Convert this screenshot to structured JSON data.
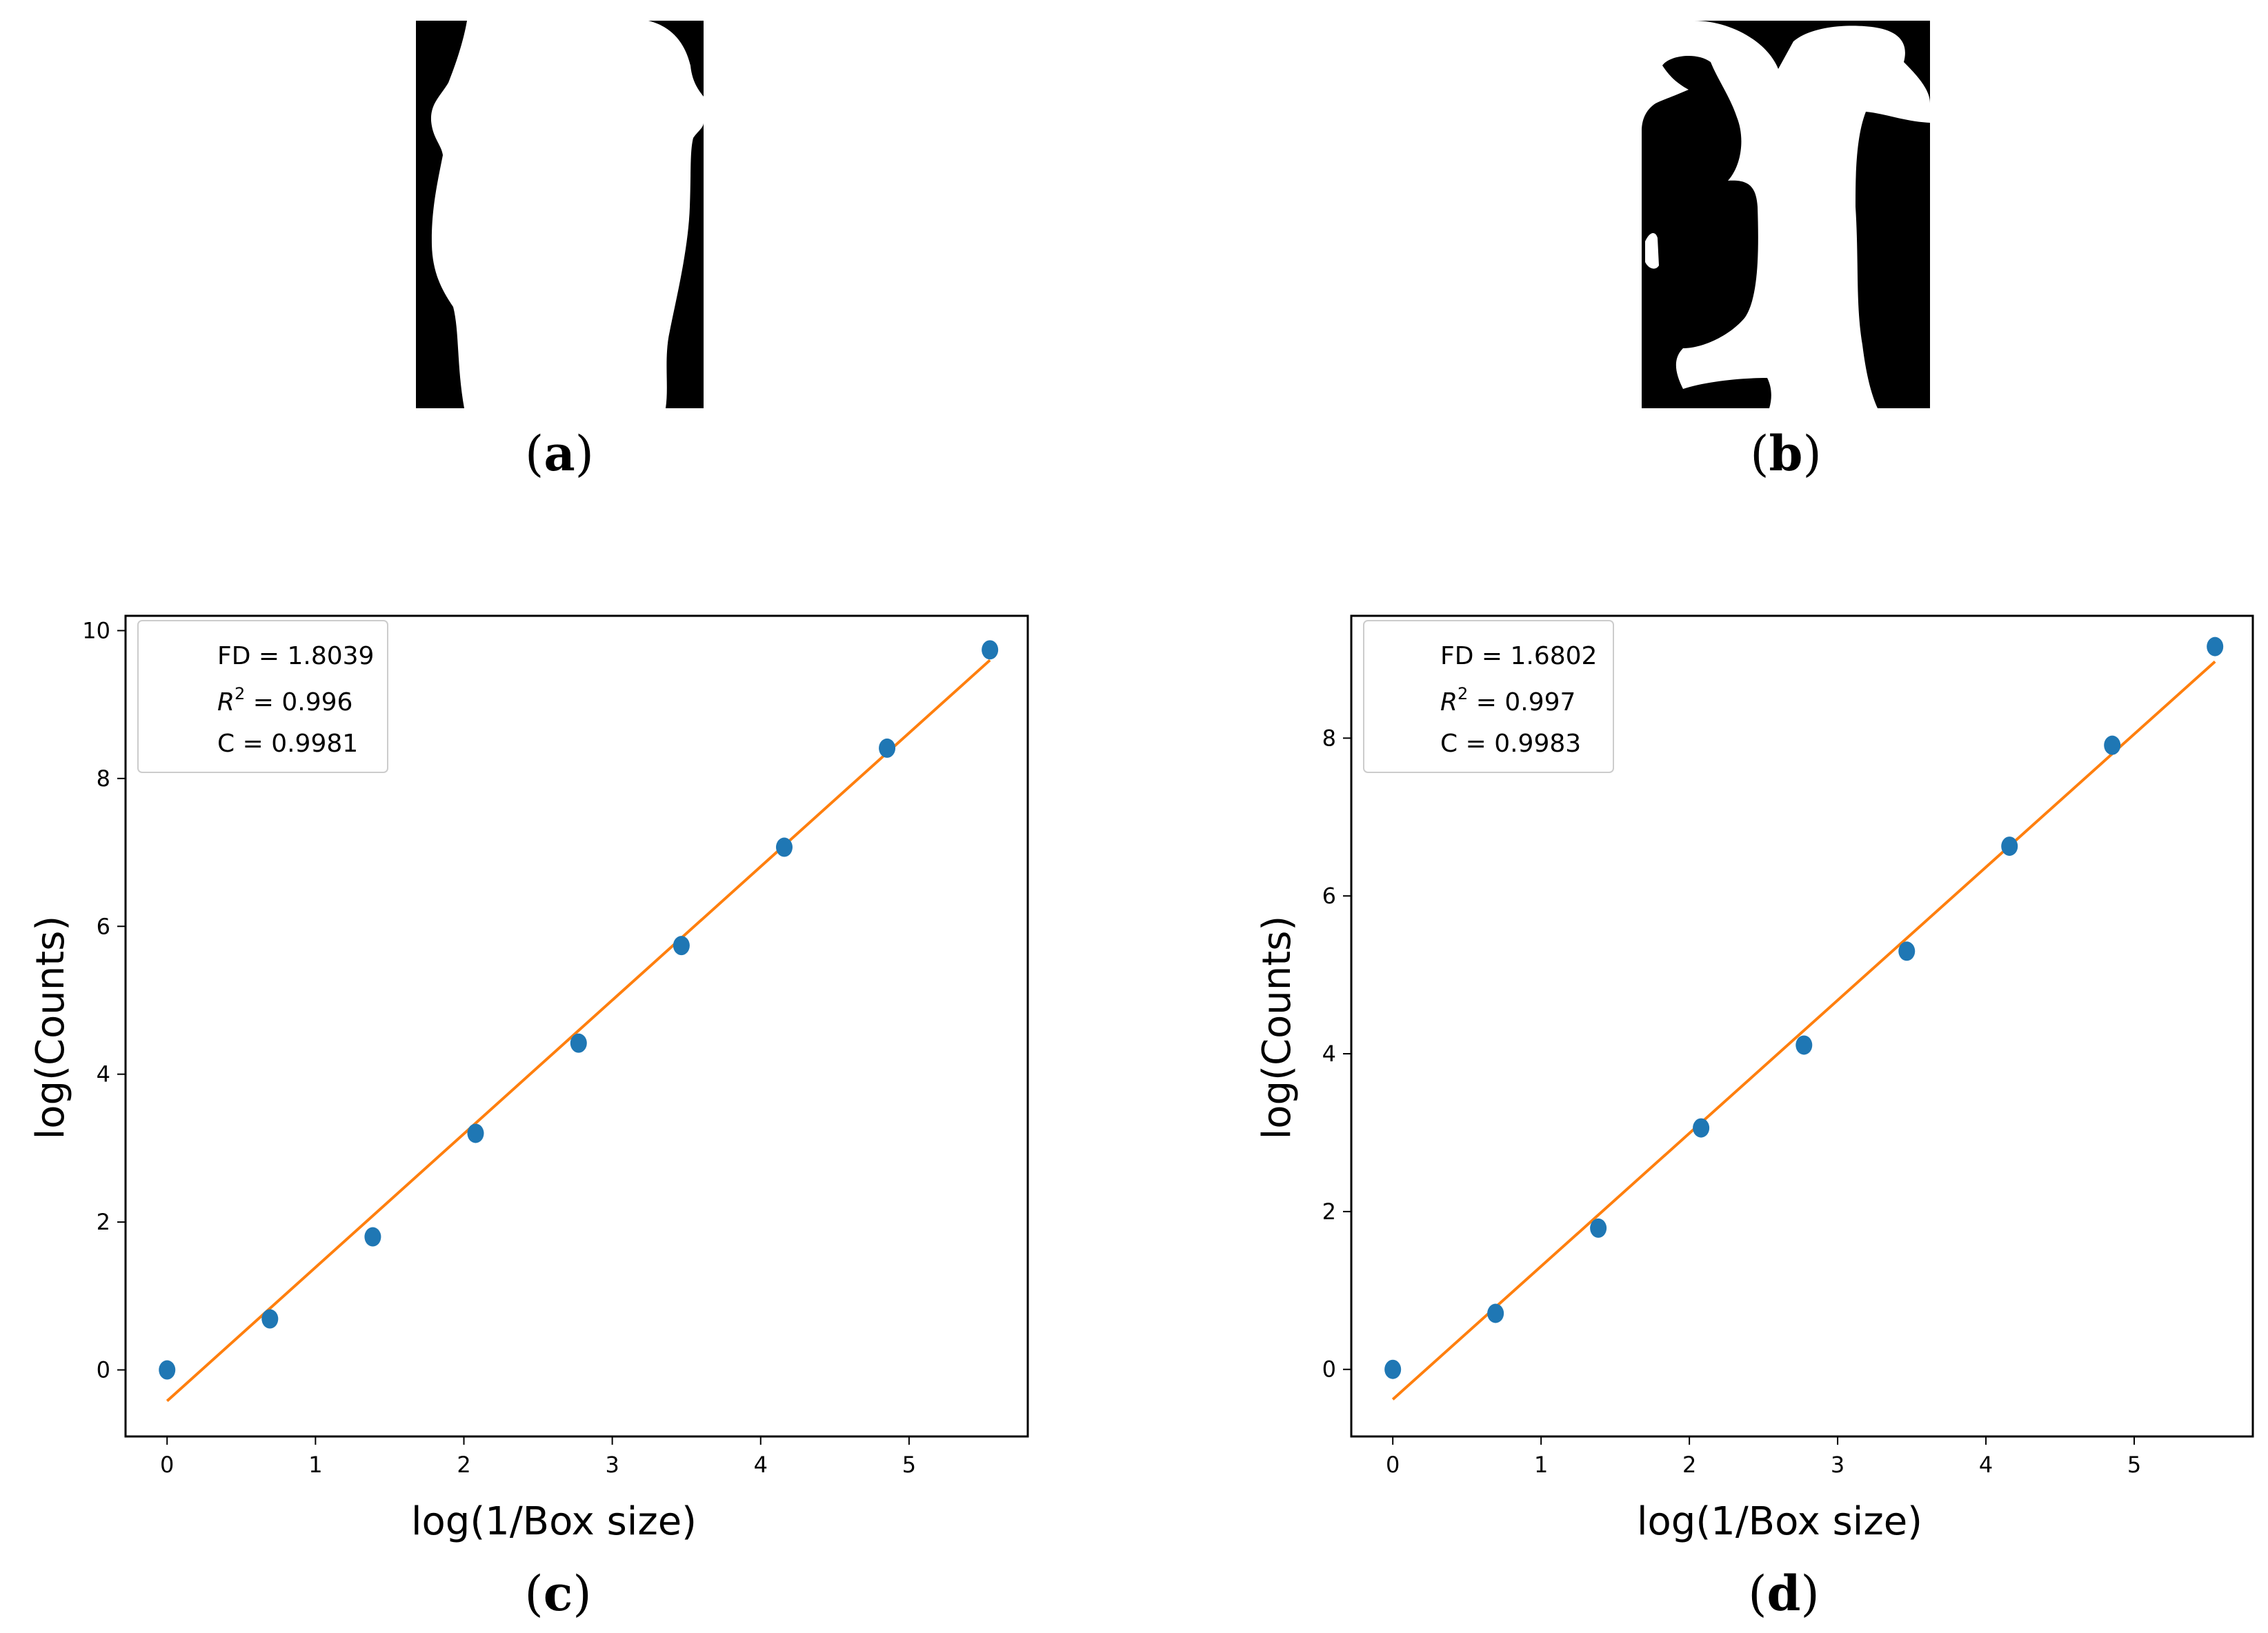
{
  "panels": {
    "a": {
      "caption_open": "(",
      "caption_letter": "a",
      "caption_close": ")"
    },
    "b": {
      "caption_open": "(",
      "caption_letter": "b",
      "caption_close": ")"
    },
    "c": {
      "caption_open": "(",
      "caption_letter": "c",
      "caption_close": ")"
    },
    "d": {
      "caption_open": "(",
      "caption_letter": "d",
      "caption_close": ")"
    }
  },
  "colors": {
    "points": "#1f77b4",
    "fit_line": "#ff7f0e"
  },
  "chart_data": [
    {
      "panel": "c",
      "type": "scatter",
      "xlabel": "log(1/Box size)",
      "ylabel": "log(Counts)",
      "xlim": [
        -0.28,
        5.8
      ],
      "ylim": [
        -0.9,
        10.2
      ],
      "xticks": [
        0,
        1,
        2,
        3,
        4,
        5
      ],
      "yticks": [
        0,
        2,
        4,
        6,
        8,
        10
      ],
      "series": [
        {
          "kind": "points",
          "x": [
            0,
            0.693,
            1.386,
            2.079,
            2.773,
            3.466,
            4.159,
            4.852,
            5.545
          ],
          "y": [
            0,
            0.69,
            1.8,
            3.2,
            4.42,
            5.74,
            7.07,
            8.41,
            9.74
          ]
        },
        {
          "kind": "fit_line",
          "x": [
            0,
            5.545
          ],
          "y": [
            -0.42,
            9.6
          ]
        }
      ],
      "legend": {
        "fd": "FD = 1.8039",
        "r2_prefix": "R",
        "r2_sup": "2",
        "r2_value": " = 0.996",
        "c": "C = 0.9981"
      }
    },
    {
      "panel": "d",
      "type": "scatter",
      "xlabel": "log(1/Box size)",
      "ylabel": "log(Counts)",
      "xlim": [
        -0.28,
        5.8
      ],
      "ylim": [
        -0.85,
        9.55
      ],
      "xticks": [
        0,
        1,
        2,
        3,
        4,
        5
      ],
      "yticks": [
        0,
        2,
        4,
        6,
        8
      ],
      "series": [
        {
          "kind": "points",
          "x": [
            0,
            0.693,
            1.386,
            2.079,
            2.773,
            3.466,
            4.159,
            4.852,
            5.545
          ],
          "y": [
            0,
            0.71,
            1.79,
            3.06,
            4.11,
            5.3,
            6.63,
            7.91,
            9.16
          ]
        },
        {
          "kind": "fit_line",
          "x": [
            0,
            5.545
          ],
          "y": [
            -0.38,
            8.97
          ]
        }
      ],
      "legend": {
        "fd": "FD = 1.6802",
        "r2_prefix": "R",
        "r2_sup": "2",
        "r2_value": " = 0.997",
        "c": "C = 0.9983"
      }
    }
  ]
}
